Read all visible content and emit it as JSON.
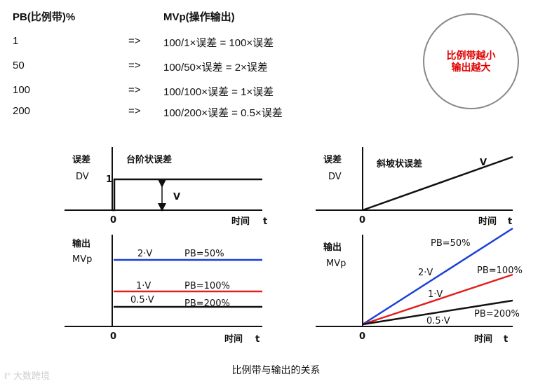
{
  "table": {
    "header_pb": "PB(比例带)%",
    "header_mv": "MVp(操作输出)",
    "arrow": "=>",
    "rows": [
      {
        "pb": "1",
        "mv": "100/1×误差 = 100×误差"
      },
      {
        "pb": "50",
        "mv": "100/50×误差 = 2×误差"
      },
      {
        "pb": "100",
        "mv": "100/100×误差 = 1×误差"
      },
      {
        "pb": "200",
        "mv": "100/200×误差 = 0.5×误差"
      }
    ]
  },
  "badge": {
    "line1": "比例带越小",
    "line2": "输出越大"
  },
  "left_diagram": {
    "error_label": "误差",
    "dv_label": "DV",
    "title": "台阶状误差",
    "one_label": "1",
    "v_label": "V",
    "zero_label": "0",
    "time_label": "时间",
    "t_label": "t",
    "output_label": "输出",
    "mvp_label": "MVp",
    "zero2_label": "0",
    "time2_label": "时间",
    "t2_label": "t",
    "lines": [
      {
        "value_label": "2·V",
        "pb_label": "PB=50%",
        "color": "#1a3ed6"
      },
      {
        "value_label": "1·V",
        "pb_label": "PB=100%",
        "color": "#e02020"
      },
      {
        "value_label": "0.5·V",
        "pb_label": "PB=200%",
        "color": "#111111"
      }
    ]
  },
  "right_diagram": {
    "error_label": "误差",
    "dv_label": "DV",
    "title": "斜坡状误差",
    "v_label": "V",
    "zero_label": "0",
    "time_label": "时间",
    "t_label": "t",
    "output_label": "输出",
    "mvp_label": "MVp",
    "zero2_label": "0",
    "time2_label": "时间",
    "t2_label": "t",
    "lines": [
      {
        "value_label": "2·V",
        "pb_label": "PB=50%",
        "color": "#1a3ed6"
      },
      {
        "value_label": "1·V",
        "pb_label": "PB=100%",
        "color": "#e02020"
      },
      {
        "value_label": "0.5·V",
        "pb_label": "PB=200%",
        "color": "#111111"
      }
    ]
  },
  "caption": "比例带与输出的关系",
  "watermark": "大数跨境"
}
